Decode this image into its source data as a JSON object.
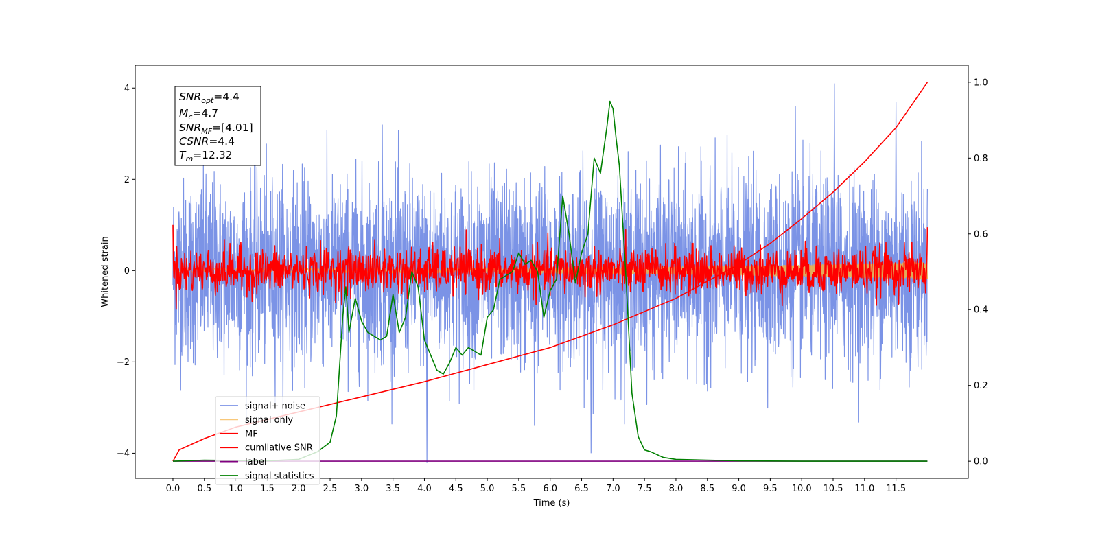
{
  "chart_data": {
    "type": "line",
    "xlabel": "Time (s)",
    "ylabel": "Whitened strain",
    "xlim": [
      -0.6,
      12.65
    ],
    "ylim": [
      -4.55,
      4.5
    ],
    "y2lim": [
      -0.045,
      1.045
    ],
    "x_ticks": [
      "0.0",
      "0.5",
      "1.0",
      "1.5",
      "2.0",
      "2.5",
      "3.0",
      "3.5",
      "4.0",
      "4.5",
      "5.0",
      "5.5",
      "6.0",
      "6.5",
      "7.0",
      "7.5",
      "8.0",
      "8.5",
      "9.0",
      "9.5",
      "10.0",
      "10.5",
      "11.0",
      "11.5"
    ],
    "y_ticks": [
      "4",
      "2",
      "0",
      "−2",
      "−4"
    ],
    "y2_ticks": [
      "1.0",
      "0.8",
      "0.6",
      "0.4",
      "0.2",
      "0.0"
    ],
    "grid": false,
    "legend_position": "lower-left",
    "annotation": {
      "snr_opt": {
        "sym": "SNR",
        "sub": "opt",
        "val": "=4.4"
      },
      "mc": {
        "sym": "M",
        "sub": "c",
        "val": "=4.7"
      },
      "snr_mf": {
        "sym": "SNR",
        "sub": "MF",
        "val": "=[4.01]"
      },
      "csnr": {
        "sym": "CSNR",
        "val": "=4.4"
      },
      "tm": {
        "sym": "T",
        "sub": "m",
        "val": "=12.32"
      }
    },
    "series": [
      {
        "name": "signal+ noise",
        "color": "#7b93e6",
        "axis": "left",
        "style": "noise band",
        "x_range": [
          0.0,
          12.0
        ],
        "sigma": 1.0,
        "min": -4.2,
        "max": 4.1
      },
      {
        "name": "signal only",
        "color": "#f5b041",
        "axis": "left",
        "style": "chirp",
        "x_range": [
          0.0,
          12.0
        ]
      },
      {
        "name": "MF",
        "color": "#ff0000",
        "axis": "left",
        "style": "noise band",
        "x_range": [
          0.0,
          12.0
        ],
        "sigma": 0.25,
        "start": 1.0,
        "end": 0.95
      },
      {
        "name": "cumilative SNR",
        "color": "#ff0000",
        "axis": "right",
        "x": [
          0.0,
          0.1,
          0.5,
          1.0,
          2.0,
          3.0,
          4.0,
          5.0,
          6.0,
          7.0,
          8.0,
          9.0,
          9.5,
          10.0,
          10.5,
          11.0,
          11.5,
          12.0
        ],
        "values": [
          0.0,
          0.03,
          0.06,
          0.09,
          0.13,
          0.17,
          0.21,
          0.255,
          0.3,
          0.36,
          0.43,
          0.52,
          0.575,
          0.64,
          0.71,
          0.79,
          0.88,
          1.0
        ]
      },
      {
        "name": "label",
        "color": "#800080",
        "axis": "right",
        "x": [
          0.0,
          12.0
        ],
        "values": [
          0.0,
          0.0
        ]
      },
      {
        "name": "signal statistics",
        "color": "#008000",
        "axis": "right",
        "x": [
          0.0,
          0.5,
          1.0,
          1.5,
          2.0,
          2.3,
          2.5,
          2.6,
          2.7,
          2.75,
          2.8,
          2.9,
          3.0,
          3.1,
          3.2,
          3.3,
          3.4,
          3.5,
          3.6,
          3.7,
          3.8,
          3.9,
          4.0,
          4.1,
          4.2,
          4.3,
          4.4,
          4.5,
          4.6,
          4.7,
          4.8,
          4.9,
          5.0,
          5.1,
          5.2,
          5.3,
          5.4,
          5.5,
          5.6,
          5.7,
          5.8,
          5.9,
          6.0,
          6.1,
          6.2,
          6.3,
          6.4,
          6.5,
          6.6,
          6.7,
          6.8,
          6.9,
          6.95,
          7.0,
          7.05,
          7.1,
          7.2,
          7.3,
          7.4,
          7.5,
          7.6,
          7.8,
          8.0,
          8.5,
          9.0,
          10.0,
          11.0,
          12.0
        ],
        "values": [
          0.0,
          0.003,
          0.002,
          0.001,
          0.005,
          0.025,
          0.05,
          0.12,
          0.38,
          0.46,
          0.34,
          0.43,
          0.37,
          0.34,
          0.33,
          0.32,
          0.33,
          0.44,
          0.34,
          0.38,
          0.5,
          0.46,
          0.32,
          0.28,
          0.24,
          0.23,
          0.26,
          0.3,
          0.28,
          0.3,
          0.29,
          0.28,
          0.38,
          0.4,
          0.48,
          0.49,
          0.5,
          0.55,
          0.52,
          0.53,
          0.5,
          0.38,
          0.45,
          0.48,
          0.7,
          0.6,
          0.47,
          0.55,
          0.6,
          0.8,
          0.76,
          0.88,
          0.95,
          0.93,
          0.85,
          0.78,
          0.5,
          0.18,
          0.065,
          0.03,
          0.025,
          0.01,
          0.005,
          0.003,
          0.001,
          0.0,
          0.0,
          0.0
        ]
      }
    ]
  }
}
